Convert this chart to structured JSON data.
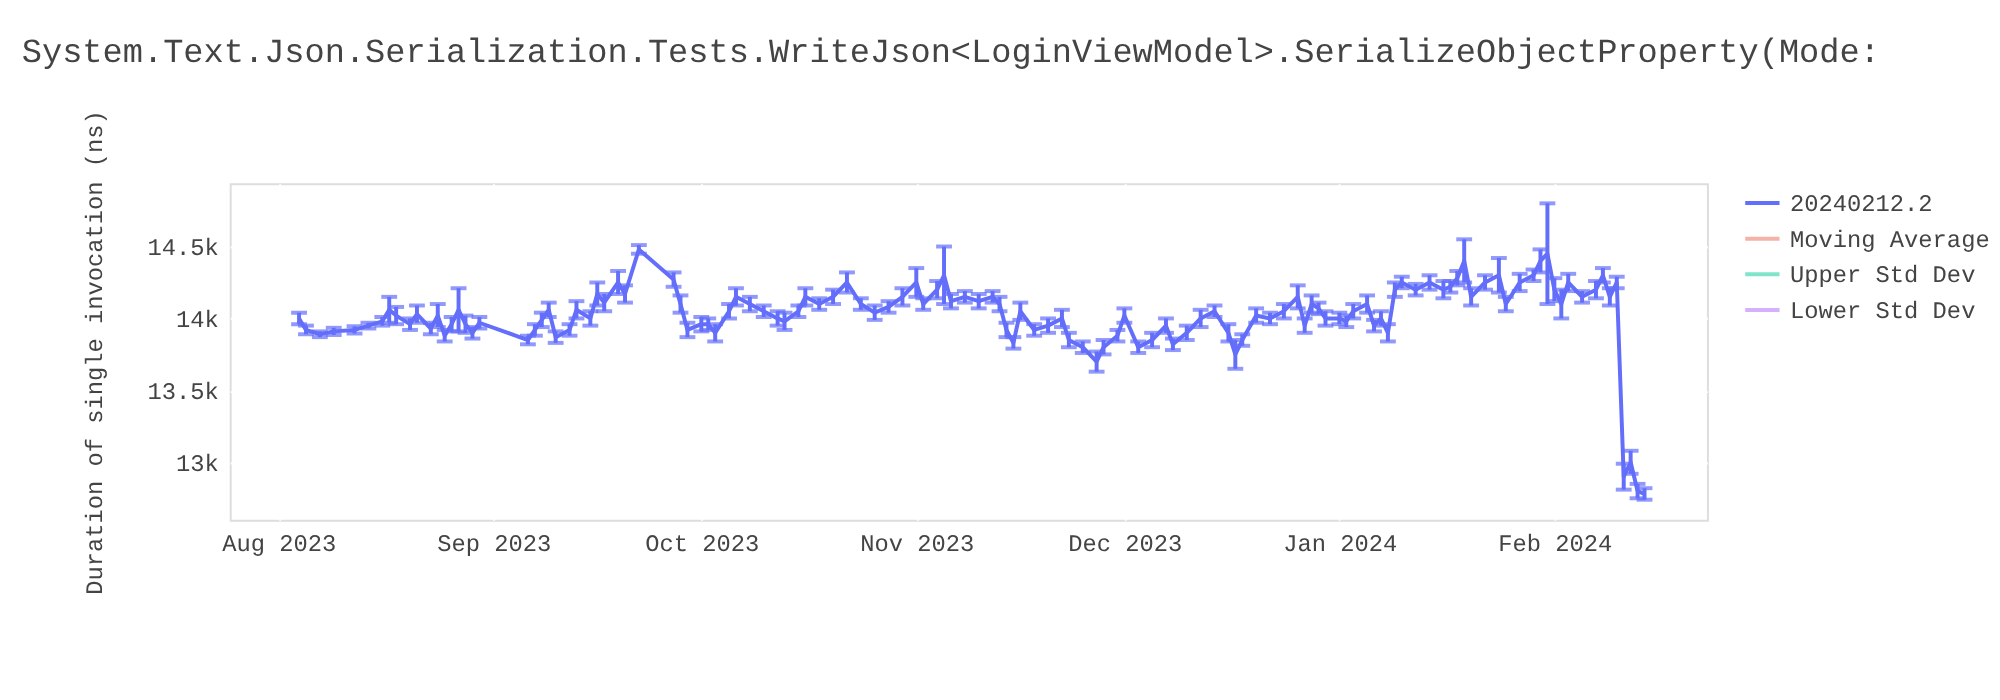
{
  "chart_data": {
    "type": "line",
    "title": "System.Text.Json.Serialization.Tests.WriteJson<LoginViewModel>.SerializeObjectProperty(Mode:",
    "ylabel": "Duration of single invocation (ns)",
    "x": [
      "2023-08-04",
      "2023-08-05",
      "2023-08-07",
      "2023-08-09",
      "2023-08-12",
      "2023-08-14",
      "2023-08-16",
      "2023-08-17",
      "2023-08-18",
      "2023-08-20",
      "2023-08-21",
      "2023-08-23",
      "2023-08-24",
      "2023-08-25",
      "2023-08-26",
      "2023-08-27",
      "2023-08-28",
      "2023-08-29",
      "2023-08-30",
      "2023-09-06",
      "2023-09-07",
      "2023-09-08",
      "2023-09-09",
      "2023-09-10",
      "2023-09-12",
      "2023-09-13",
      "2023-09-15",
      "2023-09-16",
      "2023-09-17",
      "2023-09-19",
      "2023-09-20",
      "2023-09-22",
      "2023-09-27",
      "2023-09-28",
      "2023-09-29",
      "2023-10-01",
      "2023-10-02",
      "2023-10-03",
      "2023-10-05",
      "2023-10-06",
      "2023-10-08",
      "2023-10-10",
      "2023-10-12",
      "2023-10-13",
      "2023-10-15",
      "2023-10-16",
      "2023-10-18",
      "2023-10-20",
      "2023-10-22",
      "2023-10-24",
      "2023-10-26",
      "2023-10-28",
      "2023-10-30",
      "2023-11-01",
      "2023-11-02",
      "2023-11-04",
      "2023-11-05",
      "2023-11-06",
      "2023-11-08",
      "2023-11-10",
      "2023-11-12",
      "2023-11-13",
      "2023-11-14",
      "2023-11-15",
      "2023-11-16",
      "2023-11-18",
      "2023-11-20",
      "2023-11-22",
      "2023-11-23",
      "2023-11-25",
      "2023-11-27",
      "2023-11-28",
      "2023-11-30",
      "2023-12-01",
      "2023-12-03",
      "2023-12-05",
      "2023-12-07",
      "2023-12-08",
      "2023-12-10",
      "2023-12-12",
      "2023-12-14",
      "2023-12-16",
      "2023-12-17",
      "2023-12-18",
      "2023-12-20",
      "2023-12-22",
      "2023-12-24",
      "2023-12-26",
      "2023-12-27",
      "2023-12-28",
      "2023-12-29",
      "2023-12-30",
      "2024-01-01",
      "2024-01-02",
      "2024-01-03",
      "2024-01-05",
      "2024-01-06",
      "2024-01-07",
      "2024-01-08",
      "2024-01-09",
      "2024-01-10",
      "2024-01-12",
      "2024-01-14",
      "2024-01-16",
      "2024-01-17",
      "2024-01-18",
      "2024-01-19",
      "2024-01-20",
      "2024-01-22",
      "2024-01-24",
      "2024-01-25",
      "2024-01-27",
      "2024-01-29",
      "2024-01-30",
      "2024-01-31",
      "2024-02-01",
      "2024-02-02",
      "2024-02-03",
      "2024-02-05",
      "2024-02-07",
      "2024-02-08",
      "2024-02-09",
      "2024-02-10",
      "2024-02-11",
      "2024-02-12",
      "2024-02-13",
      "2024-02-14"
    ],
    "series": [
      {
        "name": "20240212.2",
        "color": "#636efa",
        "values": [
          14000,
          13920,
          13890,
          13910,
          13920,
          13950,
          13980,
          14060,
          14020,
          13960,
          14030,
          13930,
          14020,
          13880,
          13960,
          14060,
          13960,
          13900,
          13970,
          13850,
          13920,
          13990,
          14060,
          13870,
          13920,
          14060,
          14000,
          14170,
          14110,
          14250,
          14170,
          14480,
          14270,
          14100,
          13920,
          13960,
          13960,
          13900,
          14050,
          14150,
          14100,
          14050,
          14000,
          13980,
          14050,
          14150,
          14100,
          14150,
          14250,
          14100,
          14040,
          14080,
          14150,
          14250,
          14100,
          14200,
          14300,
          14120,
          14150,
          14120,
          14150,
          14100,
          13920,
          13830,
          14050,
          13920,
          13950,
          14000,
          13850,
          13800,
          13700,
          13800,
          13880,
          14020,
          13800,
          13850,
          13950,
          13820,
          13900,
          14000,
          14050,
          13900,
          13750,
          13850,
          14020,
          14000,
          14050,
          14150,
          13950,
          14100,
          14070,
          14000,
          14000,
          13980,
          14050,
          14100,
          13950,
          14000,
          13900,
          14200,
          14250,
          14200,
          14250,
          14200,
          14220,
          14280,
          14400,
          14150,
          14250,
          14300,
          14100,
          14250,
          14300,
          14400,
          14450,
          14200,
          14100,
          14250,
          14150,
          14200,
          14300,
          14150,
          14250,
          12900,
          13000,
          12800,
          12780
        ],
        "errors": [
          40,
          30,
          20,
          25,
          25,
          20,
          30,
          90,
          60,
          40,
          60,
          40,
          80,
          40,
          50,
          150,
          60,
          40,
          40,
          30,
          40,
          50,
          50,
          40,
          40,
          60,
          50,
          80,
          60,
          80,
          60,
          30,
          50,
          60,
          50,
          50,
          40,
          60,
          50,
          60,
          50,
          40,
          50,
          60,
          40,
          60,
          40,
          50,
          70,
          40,
          50,
          40,
          60,
          100,
          40,
          60,
          200,
          50,
          40,
          50,
          40,
          50,
          50,
          40,
          60,
          40,
          50,
          60,
          50,
          40,
          70,
          50,
          40,
          50,
          40,
          50,
          50,
          40,
          50,
          60,
          40,
          60,
          100,
          40,
          50,
          40,
          50,
          80,
          50,
          60,
          40,
          50,
          40,
          40,
          50,
          60,
          40,
          50,
          60,
          50,
          40,
          40,
          50,
          60,
          40,
          50,
          150,
          60,
          50,
          120,
          50,
          60,
          40,
          80,
          350,
          80,
          100,
          60,
          40,
          60,
          50,
          60,
          40,
          90,
          80,
          50,
          40
        ]
      },
      {
        "name": "Moving Average",
        "color": "#f5b3a8",
        "values": [
          null,
          null,
          null,
          null,
          null,
          null,
          null,
          null,
          null,
          null,
          null,
          null,
          null,
          null,
          null,
          null,
          null,
          null,
          null,
          null,
          null,
          null,
          null,
          null,
          null,
          null,
          null,
          null,
          null,
          null,
          null,
          null,
          null,
          null,
          null,
          null,
          null,
          null,
          null,
          null,
          null,
          null,
          null,
          null,
          null,
          null,
          null,
          null,
          null,
          null,
          null,
          null,
          null,
          null,
          null,
          null,
          null,
          null,
          null,
          null,
          null,
          null,
          null,
          null,
          null,
          null,
          null,
          null,
          null,
          null,
          null,
          null,
          null,
          null,
          null,
          null,
          null,
          null,
          null,
          null,
          null,
          null,
          null,
          null,
          null,
          null,
          null,
          null,
          null,
          null,
          null,
          null,
          null,
          null,
          null,
          null,
          null,
          null,
          null,
          null,
          null,
          null,
          null,
          null,
          null,
          null,
          null,
          null,
          null,
          null,
          null,
          null,
          null,
          null,
          null,
          null,
          null,
          null,
          null,
          null,
          null,
          null,
          null,
          null,
          null,
          null,
          null
        ]
      },
      {
        "name": "Upper Std Dev",
        "color": "#7fe5ca",
        "values": [
          null,
          null,
          null,
          null,
          null,
          null,
          null,
          null,
          null,
          null,
          null,
          null,
          null,
          null,
          null,
          null,
          null,
          null,
          null,
          null,
          null,
          null,
          null,
          null,
          null,
          null,
          null,
          null,
          null,
          null,
          null,
          null,
          null,
          null,
          null,
          null,
          null,
          null,
          null,
          null,
          null,
          null,
          null,
          null,
          null,
          null,
          null,
          null,
          null,
          null,
          null,
          null,
          null,
          null,
          null,
          null,
          null,
          null,
          null,
          null,
          null,
          null,
          null,
          null,
          null,
          null,
          null,
          null,
          null,
          null,
          null,
          null,
          null,
          null,
          null,
          null,
          null,
          null,
          null,
          null,
          null,
          null,
          null,
          null,
          null,
          null,
          null,
          null,
          null,
          null,
          null,
          null,
          null,
          null,
          null,
          null,
          null,
          null,
          null,
          null,
          null,
          null,
          null,
          null,
          null,
          null,
          null,
          null,
          null,
          null,
          null,
          null,
          null,
          null,
          null,
          null,
          null,
          null,
          null,
          null,
          null,
          null,
          null,
          null,
          null,
          null,
          null
        ]
      },
      {
        "name": "Lower Std Dev",
        "color": "#d5b1fc",
        "values": [
          null,
          null,
          null,
          null,
          null,
          null,
          null,
          null,
          null,
          null,
          null,
          null,
          null,
          null,
          null,
          null,
          null,
          null,
          null,
          null,
          null,
          null,
          null,
          null,
          null,
          null,
          null,
          null,
          null,
          null,
          null,
          null,
          null,
          null,
          null,
          null,
          null,
          null,
          null,
          null,
          null,
          null,
          null,
          null,
          null,
          null,
          null,
          null,
          null,
          null,
          null,
          null,
          null,
          null,
          null,
          null,
          null,
          null,
          null,
          null,
          null,
          null,
          null,
          null,
          null,
          null,
          null,
          null,
          null,
          null,
          null,
          null,
          null,
          null,
          null,
          null,
          null,
          null,
          null,
          null,
          null,
          null,
          null,
          null,
          null,
          null,
          null,
          null,
          null,
          null,
          null,
          null,
          null,
          null,
          null,
          null,
          null,
          null,
          null,
          null,
          null,
          null,
          null,
          null,
          null,
          null,
          null,
          null,
          null,
          null,
          null,
          null,
          null,
          null,
          null,
          null,
          null,
          null,
          null,
          null,
          null,
          null,
          null,
          null,
          null,
          null,
          null
        ]
      }
    ],
    "xlim": [
      "2023-07-25",
      "2024-02-23"
    ],
    "xticks": [
      {
        "value": "2023-08-01",
        "label": "Aug 2023"
      },
      {
        "value": "2023-09-01",
        "label": "Sep 2023"
      },
      {
        "value": "2023-10-01",
        "label": "Oct 2023"
      },
      {
        "value": "2023-11-01",
        "label": "Nov 2023"
      },
      {
        "value": "2023-12-01",
        "label": "Dec 2023"
      },
      {
        "value": "2024-01-01",
        "label": "Jan 2024"
      },
      {
        "value": "2024-02-01",
        "label": "Feb 2024"
      }
    ],
    "ylim": [
      12600,
      14940
    ],
    "yticks": [
      {
        "value": 13000,
        "label": "13k"
      },
      {
        "value": 13500,
        "label": "13.5k"
      },
      {
        "value": 14000,
        "label": "14k"
      },
      {
        "value": 14500,
        "label": "14.5k"
      }
    ],
    "grid": true,
    "legend": "top right",
    "marker": "none",
    "line_style": "solid"
  }
}
